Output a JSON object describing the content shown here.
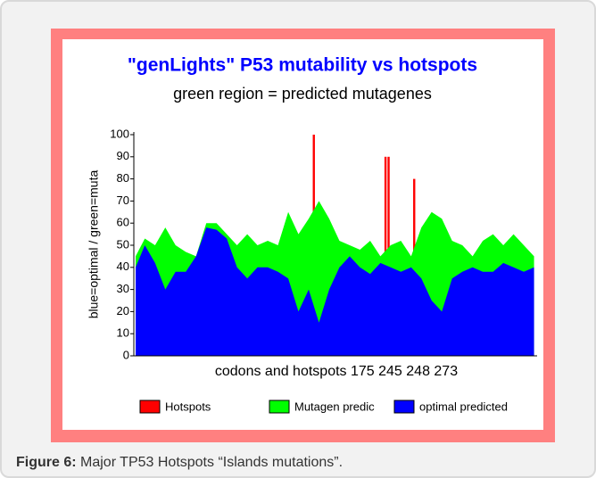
{
  "chart_data": {
    "type": "area",
    "title": "\"genLights\" P53 mutability vs hotspots",
    "subtitle": "green region = predicted mutagenes",
    "y_label": "blue=optimal / green=muta",
    "x_label": "codons and hotspots 175 245 248 273",
    "xlim": [
      1,
      393
    ],
    "ylim": [
      0,
      100
    ],
    "yticks": [
      0,
      10,
      20,
      30,
      40,
      50,
      60,
      70,
      80,
      90,
      100
    ],
    "x": [
      1,
      10,
      20,
      30,
      40,
      50,
      60,
      70,
      80,
      90,
      100,
      110,
      120,
      130,
      140,
      150,
      160,
      170,
      180,
      190,
      200,
      210,
      220,
      230,
      240,
      250,
      260,
      270,
      280,
      290,
      300,
      310,
      320,
      330,
      340,
      350,
      360,
      370,
      380,
      390
    ],
    "series": [
      {
        "name": "Hotspots",
        "color": "#ff0000",
        "kind": "spike",
        "x": [
          175,
          245,
          248,
          273
        ],
        "values": [
          100,
          90,
          90,
          80
        ]
      },
      {
        "name": "Mutagen predic",
        "color": "#00ff00",
        "kind": "area",
        "values": [
          45,
          53,
          50,
          58,
          50,
          47,
          45,
          60,
          60,
          55,
          50,
          55,
          50,
          52,
          50,
          65,
          55,
          62,
          70,
          62,
          52,
          50,
          48,
          52,
          45,
          50,
          52,
          45,
          58,
          65,
          62,
          52,
          50,
          45,
          52,
          55,
          50,
          55,
          50,
          45
        ]
      },
      {
        "name": "optimal predicted",
        "color": "#0000ff",
        "kind": "area",
        "values": [
          40,
          50,
          42,
          30,
          38,
          38,
          45,
          58,
          57,
          53,
          40,
          35,
          40,
          40,
          38,
          35,
          20,
          30,
          15,
          30,
          40,
          45,
          40,
          37,
          42,
          40,
          38,
          40,
          35,
          25,
          20,
          35,
          38,
          40,
          38,
          38,
          42,
          40,
          38,
          40
        ]
      }
    ]
  },
  "caption": {
    "label": "Figure 6:",
    "text": " Major TP53 Hotspots “Islands mutations”."
  }
}
